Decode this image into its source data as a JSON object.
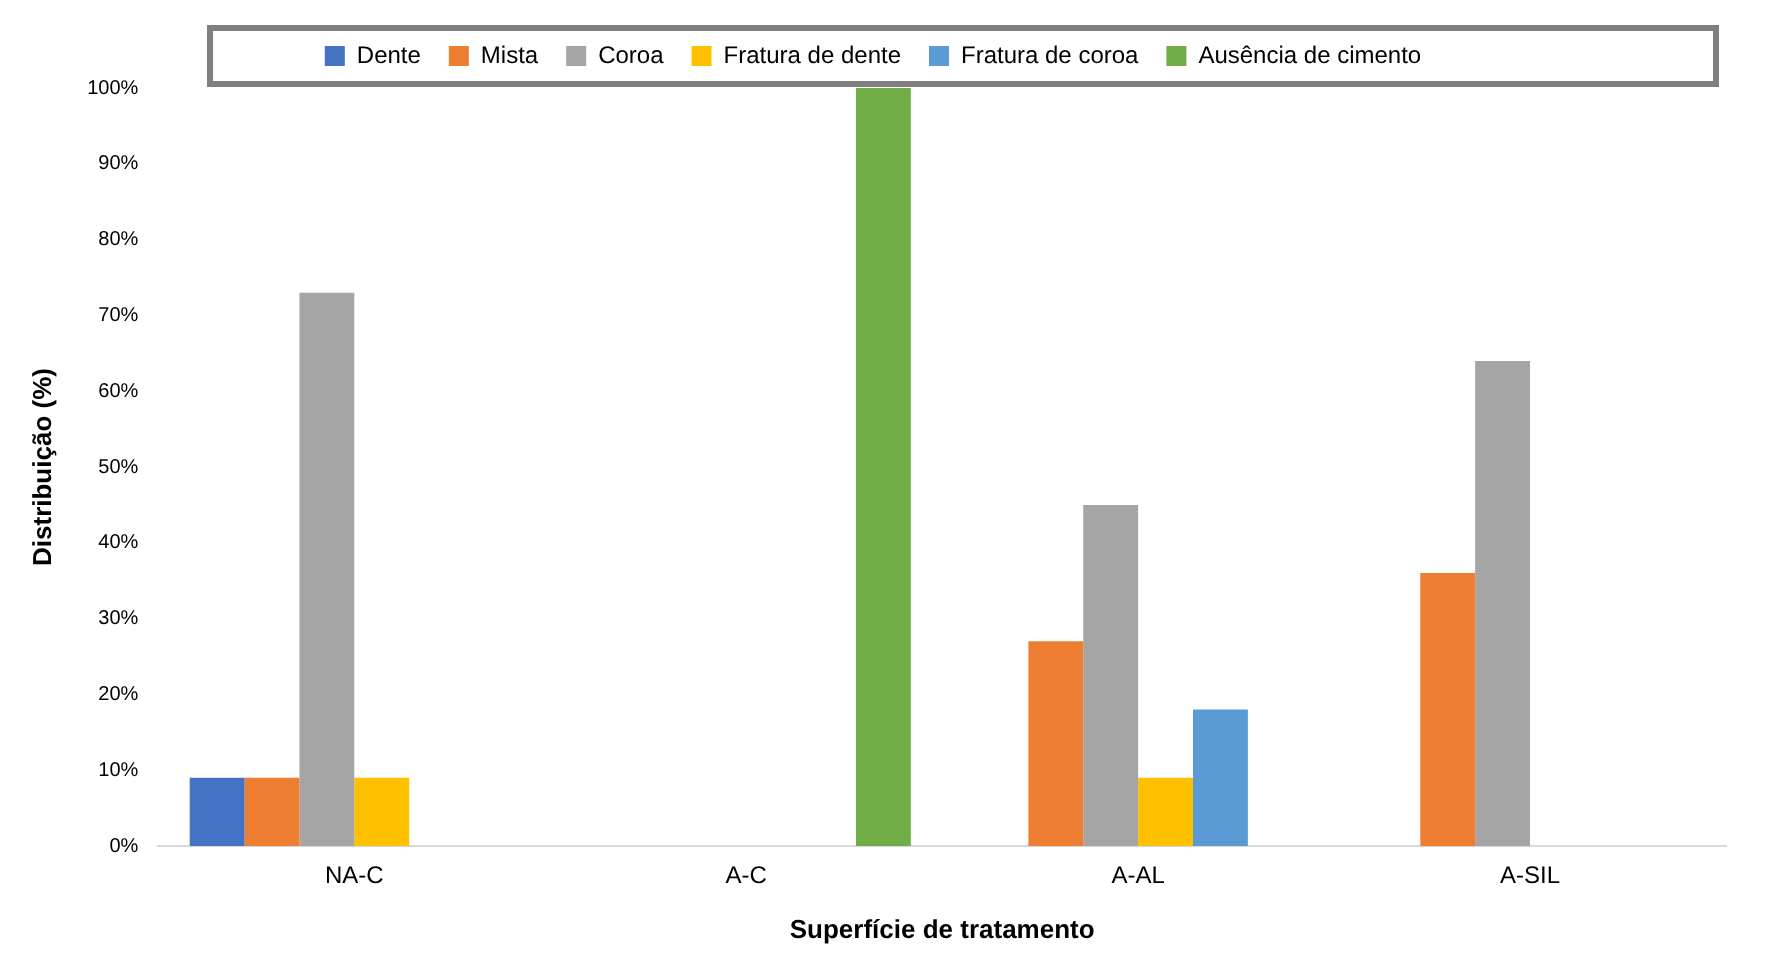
{
  "chart_data": {
    "type": "bar",
    "xlabel": "Superfície de tratamento",
    "ylabel": "Distribuição (%)",
    "categories": [
      "NA-C",
      "A-C",
      "A-AL",
      "A-SIL"
    ],
    "series": [
      {
        "name": "Dente",
        "color": "#4472c4",
        "values": [
          9,
          0,
          0,
          0
        ]
      },
      {
        "name": "Mista",
        "color": "#ed7d31",
        "values": [
          9,
          0,
          27,
          36
        ]
      },
      {
        "name": "Coroa",
        "color": "#a5a5a5",
        "values": [
          73,
          0,
          45,
          64
        ]
      },
      {
        "name": "Fratura de dente",
        "color": "#ffc000",
        "values": [
          9,
          0,
          9,
          0
        ]
      },
      {
        "name": "Fratura de coroa",
        "color": "#5b9bd5",
        "values": [
          0,
          0,
          18,
          0
        ]
      },
      {
        "name": "Ausência de cimento",
        "color": "#70ad47",
        "values": [
          0,
          100,
          0,
          0
        ]
      }
    ],
    "ylim": [
      0,
      100
    ],
    "yticks": [
      {
        "value": 0,
        "label": "0%"
      },
      {
        "value": 10,
        "label": "10%"
      },
      {
        "value": 20,
        "label": "20%"
      },
      {
        "value": 30,
        "label": "30%"
      },
      {
        "value": 40,
        "label": "40%"
      },
      {
        "value": 50,
        "label": "50%"
      },
      {
        "value": 60,
        "label": "60%"
      },
      {
        "value": 70,
        "label": "70%"
      },
      {
        "value": 80,
        "label": "80%"
      },
      {
        "value": 90,
        "label": "90%"
      },
      {
        "value": 100,
        "label": "100%"
      }
    ],
    "grid": false,
    "legend": "top"
  }
}
